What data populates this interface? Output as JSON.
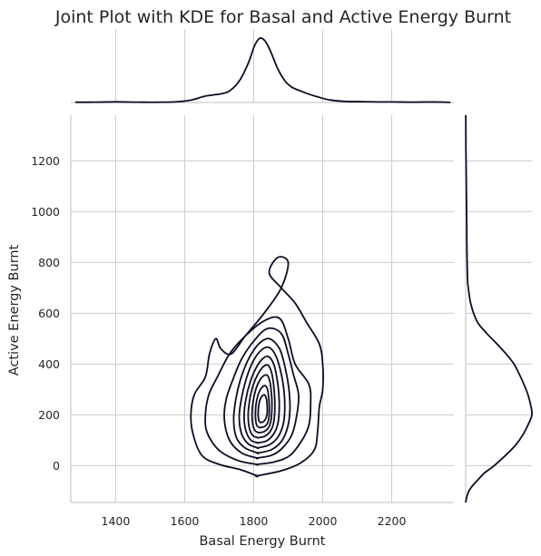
{
  "chart_data": {
    "type": "kde_jointplot",
    "title": "Joint Plot with KDE for Basal and Active Energy Burnt",
    "xlabel": "Basal Energy Burnt",
    "ylabel": "Active Energy Burnt",
    "xlim": [
      1270,
      2380
    ],
    "ylim": [
      -145,
      1380
    ],
    "xticks": [
      1400,
      1600,
      1800,
      2000,
      2200
    ],
    "yticks": [
      0,
      200,
      400,
      600,
      800,
      1000,
      1200
    ],
    "grid": true,
    "line_color": "#0f0c24",
    "contours": [
      [
        [
          1810,
          -40
        ],
        [
          1760,
          -15
        ],
        [
          1700,
          5
        ],
        [
          1650,
          40
        ],
        [
          1625,
          120
        ],
        [
          1618,
          200
        ],
        [
          1628,
          280
        ],
        [
          1660,
          350
        ],
        [
          1672,
          440
        ],
        [
          1690,
          500
        ],
        [
          1705,
          460
        ],
        [
          1735,
          440
        ],
        [
          1775,
          510
        ],
        [
          1830,
          600
        ],
        [
          1880,
          700
        ],
        [
          1900,
          800
        ],
        [
          1870,
          820
        ],
        [
          1845,
          760
        ],
        [
          1880,
          700
        ],
        [
          1920,
          640
        ],
        [
          1955,
          560
        ],
        [
          1990,
          480
        ],
        [
          2000,
          400
        ],
        [
          2000,
          300
        ],
        [
          1990,
          230
        ],
        [
          1985,
          130
        ],
        [
          1975,
          60
        ],
        [
          1935,
          10
        ],
        [
          1880,
          -20
        ],
        [
          1810,
          -40
        ]
      ],
      [
        [
          1810,
          5
        ],
        [
          1755,
          20
        ],
        [
          1700,
          60
        ],
        [
          1665,
          130
        ],
        [
          1660,
          200
        ],
        [
          1670,
          280
        ],
        [
          1695,
          350
        ],
        [
          1730,
          440
        ],
        [
          1775,
          510
        ],
        [
          1830,
          570
        ],
        [
          1875,
          580
        ],
        [
          1900,
          500
        ],
        [
          1920,
          400
        ],
        [
          1960,
          320
        ],
        [
          1965,
          240
        ],
        [
          1960,
          160
        ],
        [
          1940,
          100
        ],
        [
          1905,
          40
        ],
        [
          1860,
          15
        ],
        [
          1810,
          5
        ]
      ],
      [
        [
          1810,
          30
        ],
        [
          1765,
          50
        ],
        [
          1730,
          100
        ],
        [
          1715,
          180
        ],
        [
          1720,
          260
        ],
        [
          1740,
          340
        ],
        [
          1765,
          420
        ],
        [
          1800,
          490
        ],
        [
          1840,
          540
        ],
        [
          1880,
          520
        ],
        [
          1900,
          440
        ],
        [
          1915,
          360
        ],
        [
          1930,
          280
        ],
        [
          1925,
          200
        ],
        [
          1910,
          120
        ],
        [
          1880,
          65
        ],
        [
          1850,
          40
        ],
        [
          1810,
          30
        ]
      ],
      [
        [
          1812,
          50
        ],
        [
          1775,
          70
        ],
        [
          1750,
          110
        ],
        [
          1742,
          180
        ],
        [
          1748,
          260
        ],
        [
          1762,
          340
        ],
        [
          1785,
          420
        ],
        [
          1815,
          480
        ],
        [
          1845,
          500
        ],
        [
          1875,
          460
        ],
        [
          1892,
          380
        ],
        [
          1902,
          300
        ],
        [
          1905,
          220
        ],
        [
          1898,
          150
        ],
        [
          1880,
          95
        ],
        [
          1850,
          62
        ],
        [
          1812,
          50
        ]
      ],
      [
        [
          1812,
          70
        ],
        [
          1785,
          85
        ],
        [
          1765,
          125
        ],
        [
          1758,
          190
        ],
        [
          1764,
          260
        ],
        [
          1778,
          340
        ],
        [
          1798,
          410
        ],
        [
          1822,
          455
        ],
        [
          1845,
          465
        ],
        [
          1865,
          430
        ],
        [
          1880,
          360
        ],
        [
          1888,
          290
        ],
        [
          1890,
          220
        ],
        [
          1885,
          160
        ],
        [
          1870,
          112
        ],
        [
          1845,
          82
        ],
        [
          1812,
          70
        ]
      ],
      [
        [
          1812,
          90
        ],
        [
          1792,
          100
        ],
        [
          1778,
          135
        ],
        [
          1772,
          190
        ],
        [
          1777,
          260
        ],
        [
          1790,
          330
        ],
        [
          1807,
          385
        ],
        [
          1825,
          420
        ],
        [
          1842,
          430
        ],
        [
          1858,
          400
        ],
        [
          1868,
          340
        ],
        [
          1873,
          280
        ],
        [
          1874,
          220
        ],
        [
          1870,
          165
        ],
        [
          1858,
          125
        ],
        [
          1838,
          98
        ],
        [
          1812,
          90
        ]
      ],
      [
        [
          1813,
          110
        ],
        [
          1798,
          118
        ],
        [
          1788,
          145
        ],
        [
          1784,
          195
        ],
        [
          1788,
          255
        ],
        [
          1798,
          315
        ],
        [
          1812,
          360
        ],
        [
          1828,
          390
        ],
        [
          1842,
          395
        ],
        [
          1852,
          365
        ],
        [
          1858,
          315
        ],
        [
          1861,
          260
        ],
        [
          1861,
          210
        ],
        [
          1857,
          165
        ],
        [
          1848,
          135
        ],
        [
          1832,
          116
        ],
        [
          1813,
          110
        ]
      ],
      [
        [
          1815,
          130
        ],
        [
          1805,
          136
        ],
        [
          1798,
          158
        ],
        [
          1795,
          200
        ],
        [
          1798,
          250
        ],
        [
          1806,
          300
        ],
        [
          1817,
          335
        ],
        [
          1830,
          355
        ],
        [
          1840,
          355
        ],
        [
          1847,
          330
        ],
        [
          1851,
          290
        ],
        [
          1853,
          245
        ],
        [
          1852,
          205
        ],
        [
          1849,
          170
        ],
        [
          1842,
          148
        ],
        [
          1830,
          134
        ],
        [
          1815,
          130
        ]
      ],
      [
        [
          1817,
          150
        ],
        [
          1810,
          156
        ],
        [
          1806,
          175
        ],
        [
          1805,
          205
        ],
        [
          1807,
          245
        ],
        [
          1813,
          280
        ],
        [
          1822,
          305
        ],
        [
          1832,
          315
        ],
        [
          1839,
          305
        ],
        [
          1843,
          275
        ],
        [
          1845,
          240
        ],
        [
          1845,
          205
        ],
        [
          1843,
          180
        ],
        [
          1838,
          162
        ],
        [
          1828,
          152
        ],
        [
          1817,
          150
        ]
      ],
      [
        [
          1820,
          170
        ],
        [
          1815,
          178
        ],
        [
          1813,
          200
        ],
        [
          1814,
          230
        ],
        [
          1818,
          258
        ],
        [
          1825,
          275
        ],
        [
          1832,
          278
        ],
        [
          1837,
          262
        ],
        [
          1839,
          235
        ],
        [
          1839,
          205
        ],
        [
          1835,
          185
        ],
        [
          1828,
          173
        ],
        [
          1820,
          170
        ]
      ]
    ],
    "marginal_x": [
      [
        1283,
        0.004
      ],
      [
        1340,
        0.005
      ],
      [
        1400,
        0.01
      ],
      [
        1460,
        0.006
      ],
      [
        1520,
        0.004
      ],
      [
        1580,
        0.012
      ],
      [
        1620,
        0.04
      ],
      [
        1660,
        0.1
      ],
      [
        1700,
        0.13
      ],
      [
        1730,
        0.18
      ],
      [
        1760,
        0.35
      ],
      [
        1785,
        0.62
      ],
      [
        1800,
        0.85
      ],
      [
        1812,
        0.97
      ],
      [
        1822,
        1.0
      ],
      [
        1835,
        0.94
      ],
      [
        1850,
        0.78
      ],
      [
        1870,
        0.52
      ],
      [
        1890,
        0.34
      ],
      [
        1910,
        0.24
      ],
      [
        1935,
        0.18
      ],
      [
        1960,
        0.13
      ],
      [
        1990,
        0.08
      ],
      [
        2020,
        0.04
      ],
      [
        2060,
        0.018
      ],
      [
        2120,
        0.012
      ],
      [
        2200,
        0.008
      ],
      [
        2260,
        0.006
      ],
      [
        2320,
        0.008
      ],
      [
        2370,
        0.002
      ]
    ],
    "marginal_y": [
      [
        -145,
        0.0
      ],
      [
        -120,
        0.02
      ],
      [
        -100,
        0.05
      ],
      [
        -80,
        0.1
      ],
      [
        -60,
        0.17
      ],
      [
        -30,
        0.28
      ],
      [
        0,
        0.43
      ],
      [
        40,
        0.6
      ],
      [
        80,
        0.75
      ],
      [
        120,
        0.86
      ],
      [
        160,
        0.94
      ],
      [
        200,
        1.0
      ],
      [
        240,
        0.98
      ],
      [
        280,
        0.94
      ],
      [
        320,
        0.88
      ],
      [
        360,
        0.81
      ],
      [
        400,
        0.73
      ],
      [
        440,
        0.61
      ],
      [
        480,
        0.47
      ],
      [
        520,
        0.32
      ],
      [
        560,
        0.19
      ],
      [
        600,
        0.12
      ],
      [
        640,
        0.075
      ],
      [
        680,
        0.05
      ],
      [
        720,
        0.032
      ],
      [
        760,
        0.026
      ],
      [
        800,
        0.022
      ],
      [
        880,
        0.018
      ],
      [
        950,
        0.016
      ],
      [
        1050,
        0.012
      ],
      [
        1150,
        0.008
      ],
      [
        1250,
        0.004
      ],
      [
        1330,
        0.003
      ],
      [
        1380,
        0.002
      ]
    ]
  }
}
